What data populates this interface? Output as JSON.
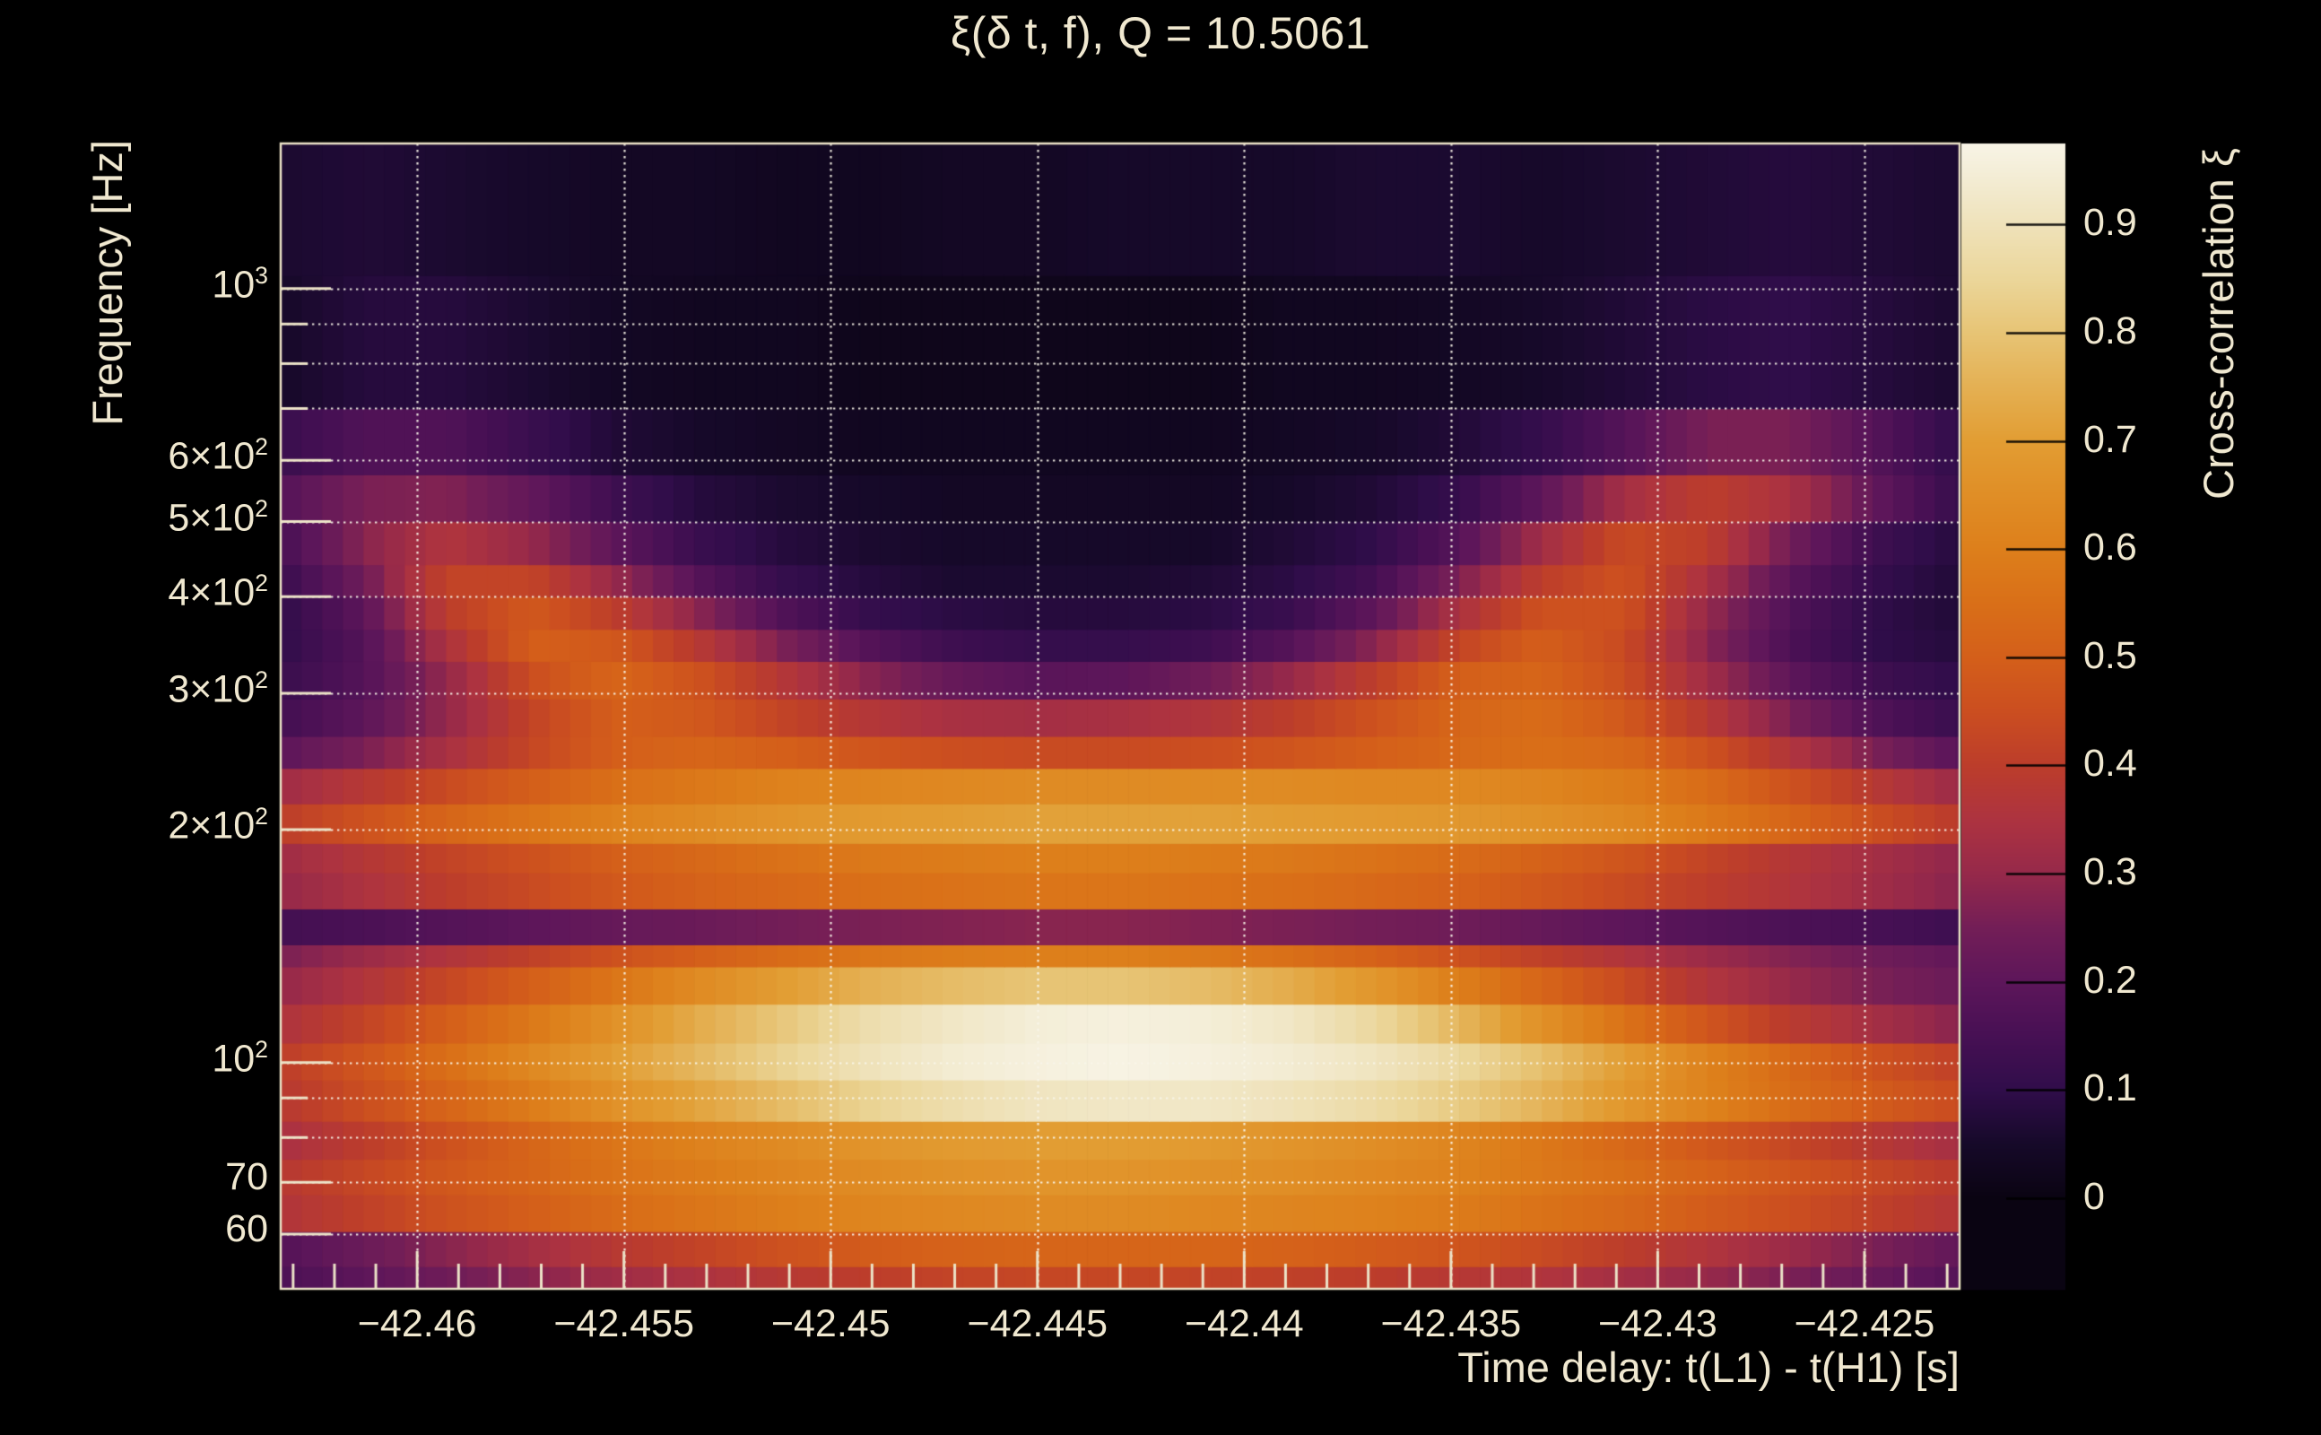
{
  "page": {
    "background": "#000000",
    "text_color": "#f0e8d0",
    "frame_color": "#ece3c8",
    "grid_color": "#faf6ea"
  },
  "chart_data": {
    "type": "heatmap",
    "title": "ξ(δ t, f), Q = 10.5061",
    "xlabel": "Time delay: t(L1) - t(H1) [s]",
    "ylabel": "Frequency [Hz]",
    "colorbar_label": "Cross-correlation ξ",
    "x_axis": {
      "scale": "linear",
      "min": -42.4633,
      "max": -42.4227,
      "minor_tick_step": 0.001,
      "ticks": [
        {
          "v": -42.46,
          "label": "−42.46"
        },
        {
          "v": -42.455,
          "label": "−42.455"
        },
        {
          "v": -42.45,
          "label": "−42.45"
        },
        {
          "v": -42.445,
          "label": "−42.445"
        },
        {
          "v": -42.44,
          "label": "−42.44"
        },
        {
          "v": -42.435,
          "label": "−42.435"
        },
        {
          "v": -42.43,
          "label": "−42.43"
        },
        {
          "v": -42.425,
          "label": "−42.425"
        }
      ]
    },
    "y_axis": {
      "scale": "log",
      "min": 51,
      "max": 1540,
      "ticks": [
        {
          "v": 1000,
          "base": "10",
          "exp": "3"
        },
        {
          "v": 600,
          "base": "6×10",
          "exp": "2"
        },
        {
          "v": 500,
          "base": "5×10",
          "exp": "2"
        },
        {
          "v": 400,
          "base": "4×10",
          "exp": "2"
        },
        {
          "v": 300,
          "base": "3×10",
          "exp": "2"
        },
        {
          "v": 200,
          "base": "2×10",
          "exp": "2"
        },
        {
          "v": 100,
          "base": "10",
          "exp": "2"
        },
        {
          "v": 70,
          "base": "70"
        },
        {
          "v": 60,
          "base": "60"
        }
      ],
      "gridlines": [
        60,
        70,
        80,
        90,
        100,
        200,
        300,
        400,
        500,
        600,
        700,
        800,
        900,
        1000
      ],
      "major_tick_values": [
        60,
        70,
        100,
        200,
        300,
        400,
        500,
        600,
        1000
      ],
      "minor_tick_values": [
        80,
        90,
        700,
        800,
        900
      ]
    },
    "z_axis": {
      "min": -0.084,
      "max": 0.975,
      "ticks": [
        {
          "v": 0.9,
          "label": "0.9"
        },
        {
          "v": 0.8,
          "label": "0.8"
        },
        {
          "v": 0.7,
          "label": "0.7"
        },
        {
          "v": 0.6,
          "label": "0.6"
        },
        {
          "v": 0.5,
          "label": "0.5"
        },
        {
          "v": 0.4,
          "label": "0.4"
        },
        {
          "v": 0.3,
          "label": "0.3"
        },
        {
          "v": 0.2,
          "label": "0.2"
        },
        {
          "v": 0.1,
          "label": "0.1"
        },
        {
          "v": 0,
          "label": "0"
        }
      ]
    },
    "colormap": [
      [
        0.0,
        "#0a0412"
      ],
      [
        0.05,
        "#160929"
      ],
      [
        0.1,
        "#300d4a"
      ],
      [
        0.15,
        "#471054"
      ],
      [
        0.2,
        "#5d165a"
      ],
      [
        0.25,
        "#731e57"
      ],
      [
        0.3,
        "#96294a"
      ],
      [
        0.35,
        "#ad3340"
      ],
      [
        0.4,
        "#bc3d2b"
      ],
      [
        0.45,
        "#cb4e20"
      ],
      [
        0.5,
        "#d45f1a"
      ],
      [
        0.55,
        "#d96f18"
      ],
      [
        0.6,
        "#dd7f1b"
      ],
      [
        0.65,
        "#e08e26"
      ],
      [
        0.7,
        "#e29d33"
      ],
      [
        0.75,
        "#e4b053"
      ],
      [
        0.8,
        "#e7c475"
      ],
      [
        0.85,
        "#ebd69a"
      ],
      [
        0.9,
        "#efe2ba"
      ],
      [
        0.95,
        "#f4eed8"
      ],
      [
        0.975,
        "#f8f4e6"
      ]
    ],
    "t_samples": [
      -42.4633,
      -42.46127,
      -42.45924,
      -42.45721,
      -42.45518,
      -42.45315,
      -42.45112,
      -42.44909,
      -42.44706,
      -42.44503,
      -42.443,
      -42.44097,
      -42.43894,
      -42.43691,
      -42.43488,
      -42.43285,
      -42.43082,
      -42.42879,
      -42.42676,
      -42.42473,
      -42.4227
    ],
    "rows": [
      {
        "f_lo": 51,
        "f_hi": 54.5,
        "xi": [
          0.16,
          0.2,
          0.24,
          0.28,
          0.32,
          0.35,
          0.38,
          0.4,
          0.42,
          0.43,
          0.43,
          0.42,
          0.41,
          0.4,
          0.38,
          0.36,
          0.33,
          0.3,
          0.26,
          0.22,
          0.18
        ]
      },
      {
        "f_lo": 54.5,
        "f_hi": 60.5,
        "xi": [
          0.18,
          0.23,
          0.28,
          0.33,
          0.38,
          0.42,
          0.46,
          0.49,
          0.51,
          0.52,
          0.52,
          0.52,
          0.51,
          0.49,
          0.47,
          0.44,
          0.4,
          0.36,
          0.31,
          0.26,
          0.21
        ]
      },
      {
        "f_lo": 60.5,
        "f_hi": 67.5,
        "xi": [
          0.36,
          0.41,
          0.46,
          0.5,
          0.54,
          0.57,
          0.6,
          0.62,
          0.63,
          0.64,
          0.64,
          0.63,
          0.62,
          0.61,
          0.59,
          0.56,
          0.53,
          0.49,
          0.45,
          0.41,
          0.37
        ]
      },
      {
        "f_lo": 67.5,
        "f_hi": 75,
        "xi": [
          0.38,
          0.43,
          0.48,
          0.52,
          0.56,
          0.59,
          0.62,
          0.64,
          0.66,
          0.67,
          0.67,
          0.66,
          0.65,
          0.63,
          0.61,
          0.58,
          0.55,
          0.51,
          0.47,
          0.43,
          0.39
        ]
      },
      {
        "f_lo": 75,
        "f_hi": 84,
        "xi": [
          0.34,
          0.4,
          0.46,
          0.52,
          0.57,
          0.61,
          0.64,
          0.67,
          0.69,
          0.7,
          0.7,
          0.69,
          0.67,
          0.65,
          0.62,
          0.58,
          0.53,
          0.48,
          0.43,
          0.38,
          0.33
        ]
      },
      {
        "f_lo": 84,
        "f_hi": 95,
        "xi": [
          0.38,
          0.45,
          0.52,
          0.59,
          0.66,
          0.72,
          0.78,
          0.84,
          0.88,
          0.91,
          0.92,
          0.92,
          0.9,
          0.87,
          0.82,
          0.76,
          0.68,
          0.61,
          0.54,
          0.49,
          0.44
        ]
      },
      {
        "f_lo": 95,
        "f_hi": 106,
        "xi": [
          0.4,
          0.47,
          0.55,
          0.63,
          0.7,
          0.77,
          0.84,
          0.9,
          0.94,
          0.96,
          0.97,
          0.96,
          0.94,
          0.91,
          0.86,
          0.79,
          0.7,
          0.61,
          0.53,
          0.46,
          0.41
        ]
      },
      {
        "f_lo": 106,
        "f_hi": 119,
        "xi": [
          0.35,
          0.42,
          0.5,
          0.58,
          0.66,
          0.74,
          0.81,
          0.88,
          0.92,
          0.95,
          0.96,
          0.95,
          0.92,
          0.86,
          0.77,
          0.66,
          0.56,
          0.47,
          0.39,
          0.33,
          0.28
        ]
      },
      {
        "f_lo": 119,
        "f_hi": 133,
        "xi": [
          0.3,
          0.36,
          0.43,
          0.5,
          0.57,
          0.64,
          0.7,
          0.75,
          0.78,
          0.8,
          0.8,
          0.78,
          0.74,
          0.68,
          0.6,
          0.52,
          0.44,
          0.36,
          0.3,
          0.26,
          0.23
        ]
      },
      {
        "f_lo": 133,
        "f_hi": 142,
        "xi": [
          0.26,
          0.31,
          0.36,
          0.41,
          0.46,
          0.5,
          0.54,
          0.57,
          0.59,
          0.6,
          0.6,
          0.58,
          0.55,
          0.51,
          0.46,
          0.41,
          0.36,
          0.31,
          0.27,
          0.24,
          0.21
        ]
      },
      {
        "f_lo": 142,
        "f_hi": 158,
        "xi": [
          0.14,
          0.16,
          0.18,
          0.2,
          0.22,
          0.23,
          0.25,
          0.26,
          0.27,
          0.28,
          0.28,
          0.27,
          0.26,
          0.25,
          0.24,
          0.22,
          0.2,
          0.18,
          0.16,
          0.15,
          0.13
        ]
      },
      {
        "f_lo": 158,
        "f_hi": 176,
        "xi": [
          0.3,
          0.35,
          0.4,
          0.44,
          0.48,
          0.51,
          0.53,
          0.55,
          0.56,
          0.57,
          0.57,
          0.56,
          0.55,
          0.53,
          0.51,
          0.48,
          0.44,
          0.4,
          0.36,
          0.32,
          0.28
        ]
      },
      {
        "f_lo": 176,
        "f_hi": 192,
        "xi": [
          0.32,
          0.37,
          0.42,
          0.46,
          0.5,
          0.53,
          0.56,
          0.58,
          0.59,
          0.6,
          0.6,
          0.59,
          0.58,
          0.56,
          0.54,
          0.51,
          0.47,
          0.42,
          0.37,
          0.33,
          0.29
        ]
      },
      {
        "f_lo": 192,
        "f_hi": 216,
        "xi": [
          0.4,
          0.46,
          0.52,
          0.57,
          0.61,
          0.64,
          0.67,
          0.69,
          0.7,
          0.71,
          0.71,
          0.71,
          0.7,
          0.69,
          0.68,
          0.66,
          0.63,
          0.58,
          0.52,
          0.45,
          0.39
        ]
      },
      {
        "f_lo": 216,
        "f_hi": 240,
        "xi": [
          0.32,
          0.38,
          0.44,
          0.5,
          0.55,
          0.58,
          0.61,
          0.62,
          0.63,
          0.64,
          0.64,
          0.64,
          0.64,
          0.63,
          0.63,
          0.62,
          0.59,
          0.54,
          0.46,
          0.38,
          0.31
        ]
      },
      {
        "f_lo": 240,
        "f_hi": 264,
        "xi": [
          0.2,
          0.26,
          0.34,
          0.43,
          0.5,
          0.52,
          0.5,
          0.47,
          0.45,
          0.44,
          0.44,
          0.45,
          0.47,
          0.5,
          0.53,
          0.55,
          0.53,
          0.46,
          0.36,
          0.26,
          0.19
        ]
      },
      {
        "f_lo": 264,
        "f_hi": 295,
        "xi": [
          0.14,
          0.2,
          0.3,
          0.42,
          0.5,
          0.48,
          0.42,
          0.37,
          0.34,
          0.33,
          0.34,
          0.36,
          0.4,
          0.46,
          0.52,
          0.54,
          0.48,
          0.38,
          0.26,
          0.17,
          0.12
        ]
      },
      {
        "f_lo": 295,
        "f_hi": 330,
        "xi": [
          0.12,
          0.18,
          0.3,
          0.45,
          0.52,
          0.46,
          0.37,
          0.28,
          0.22,
          0.19,
          0.2,
          0.24,
          0.3,
          0.4,
          0.5,
          0.52,
          0.45,
          0.32,
          0.2,
          0.13,
          0.1
        ]
      },
      {
        "f_lo": 330,
        "f_hi": 363,
        "xi": [
          0.1,
          0.18,
          0.35,
          0.5,
          0.48,
          0.38,
          0.26,
          0.18,
          0.13,
          0.11,
          0.11,
          0.13,
          0.18,
          0.28,
          0.42,
          0.5,
          0.44,
          0.28,
          0.16,
          0.1,
          0.08
        ]
      },
      {
        "f_lo": 363,
        "f_hi": 400,
        "xi": [
          0.1,
          0.2,
          0.4,
          0.48,
          0.4,
          0.28,
          0.17,
          0.11,
          0.09,
          0.08,
          0.08,
          0.09,
          0.12,
          0.2,
          0.34,
          0.46,
          0.46,
          0.3,
          0.17,
          0.1,
          0.07
        ]
      },
      {
        "f_lo": 400,
        "f_hi": 440,
        "xi": [
          0.12,
          0.24,
          0.42,
          0.42,
          0.3,
          0.18,
          0.11,
          0.08,
          0.06,
          0.06,
          0.06,
          0.07,
          0.09,
          0.14,
          0.26,
          0.4,
          0.46,
          0.34,
          0.19,
          0.11,
          0.07
        ]
      },
      {
        "f_lo": 440,
        "f_hi": 500,
        "xi": [
          0.15,
          0.28,
          0.36,
          0.3,
          0.2,
          0.12,
          0.08,
          0.06,
          0.05,
          0.05,
          0.05,
          0.05,
          0.07,
          0.1,
          0.18,
          0.32,
          0.44,
          0.4,
          0.24,
          0.13,
          0.08
        ]
      },
      {
        "f_lo": 500,
        "f_hi": 575,
        "xi": [
          0.18,
          0.26,
          0.27,
          0.21,
          0.13,
          0.08,
          0.06,
          0.05,
          0.04,
          0.04,
          0.04,
          0.04,
          0.05,
          0.07,
          0.11,
          0.2,
          0.33,
          0.4,
          0.34,
          0.21,
          0.11
        ]
      },
      {
        "f_lo": 575,
        "f_hi": 700,
        "xi": [
          0.12,
          0.17,
          0.17,
          0.12,
          0.07,
          0.05,
          0.04,
          0.03,
          0.03,
          0.03,
          0.03,
          0.03,
          0.04,
          0.05,
          0.07,
          0.11,
          0.18,
          0.26,
          0.26,
          0.18,
          0.1
        ]
      },
      {
        "f_lo": 700,
        "f_hi": 1040,
        "xi": [
          0.05,
          0.08,
          0.08,
          0.06,
          0.04,
          0.03,
          0.03,
          0.02,
          0.02,
          0.02,
          0.02,
          0.02,
          0.03,
          0.03,
          0.04,
          0.05,
          0.07,
          0.09,
          0.1,
          0.08,
          0.06
        ]
      },
      {
        "f_lo": 1040,
        "f_hi": 1540,
        "xi": [
          0.06,
          0.07,
          0.06,
          0.05,
          0.04,
          0.04,
          0.03,
          0.03,
          0.04,
          0.04,
          0.05,
          0.05,
          0.05,
          0.06,
          0.06,
          0.05,
          0.06,
          0.07,
          0.08,
          0.07,
          0.06
        ]
      }
    ]
  }
}
